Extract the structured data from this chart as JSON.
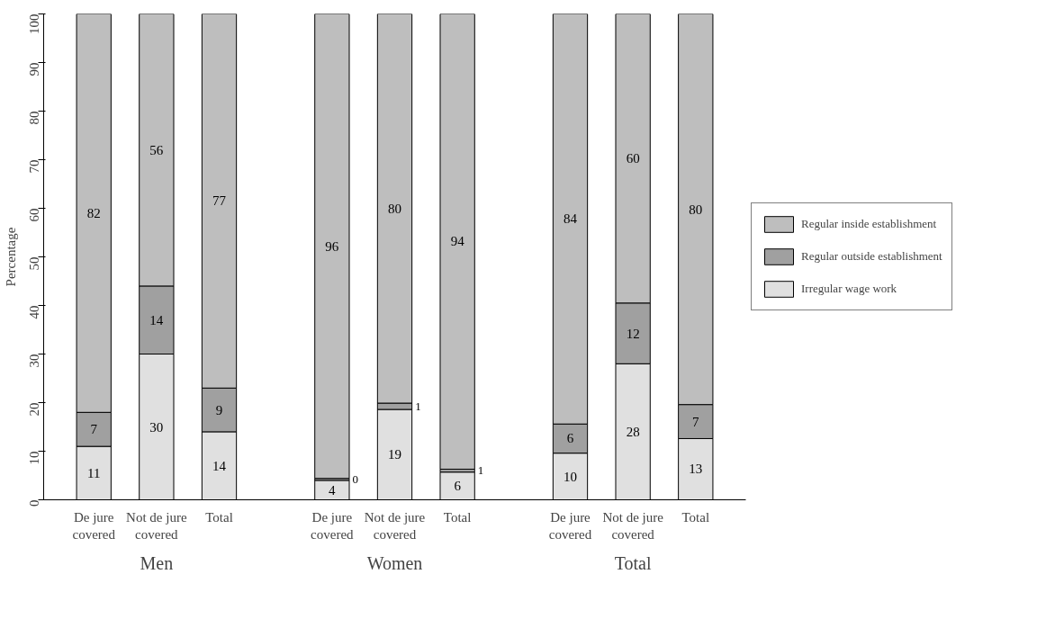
{
  "chart_data": {
    "type": "bar",
    "stacked": true,
    "ylabel": "Percentage",
    "categories": [
      "De jure covered",
      "Not de jure covered",
      "Total",
      "De jure covered",
      "Not de jure covered",
      "Total",
      "De jure covered",
      "Not de jure covered",
      "Total"
    ],
    "annotations": [
      "Men",
      "Women",
      "Total"
    ],
    "series": [
      {
        "name": "Irregular wage work",
        "color": "#e0e0e0",
        "values": [
          11,
          30,
          14,
          4,
          18.6,
          5.7,
          9.6,
          28,
          12.6
        ],
        "value_labels": [
          "11",
          "30",
          "14",
          "4",
          "19",
          "6",
          "10",
          "28",
          "13"
        ]
      },
      {
        "name": "Regular outside establishment",
        "color": "#a0a0a0",
        "values": [
          7,
          14,
          9,
          0.4,
          1.3,
          0.6,
          6,
          12.5,
          7
        ],
        "value_labels": [
          "7",
          "14",
          "9",
          "0",
          "1",
          "1",
          "6",
          "12",
          "7"
        ]
      },
      {
        "name": "Regular inside establishment",
        "color": "#bebebe",
        "values": [
          82,
          56,
          77,
          95.6,
          80.1,
          93.7,
          84.4,
          59.5,
          80.4
        ],
        "value_labels": [
          "82",
          "56",
          "77",
          "96",
          "80",
          "94",
          "84",
          "60",
          "80"
        ]
      }
    ],
    "ylim": [
      0,
      100
    ],
    "yticks": [
      0,
      10,
      20,
      30,
      40,
      50,
      60,
      70,
      80,
      90,
      100
    ],
    "grid": false,
    "legend": "right"
  }
}
